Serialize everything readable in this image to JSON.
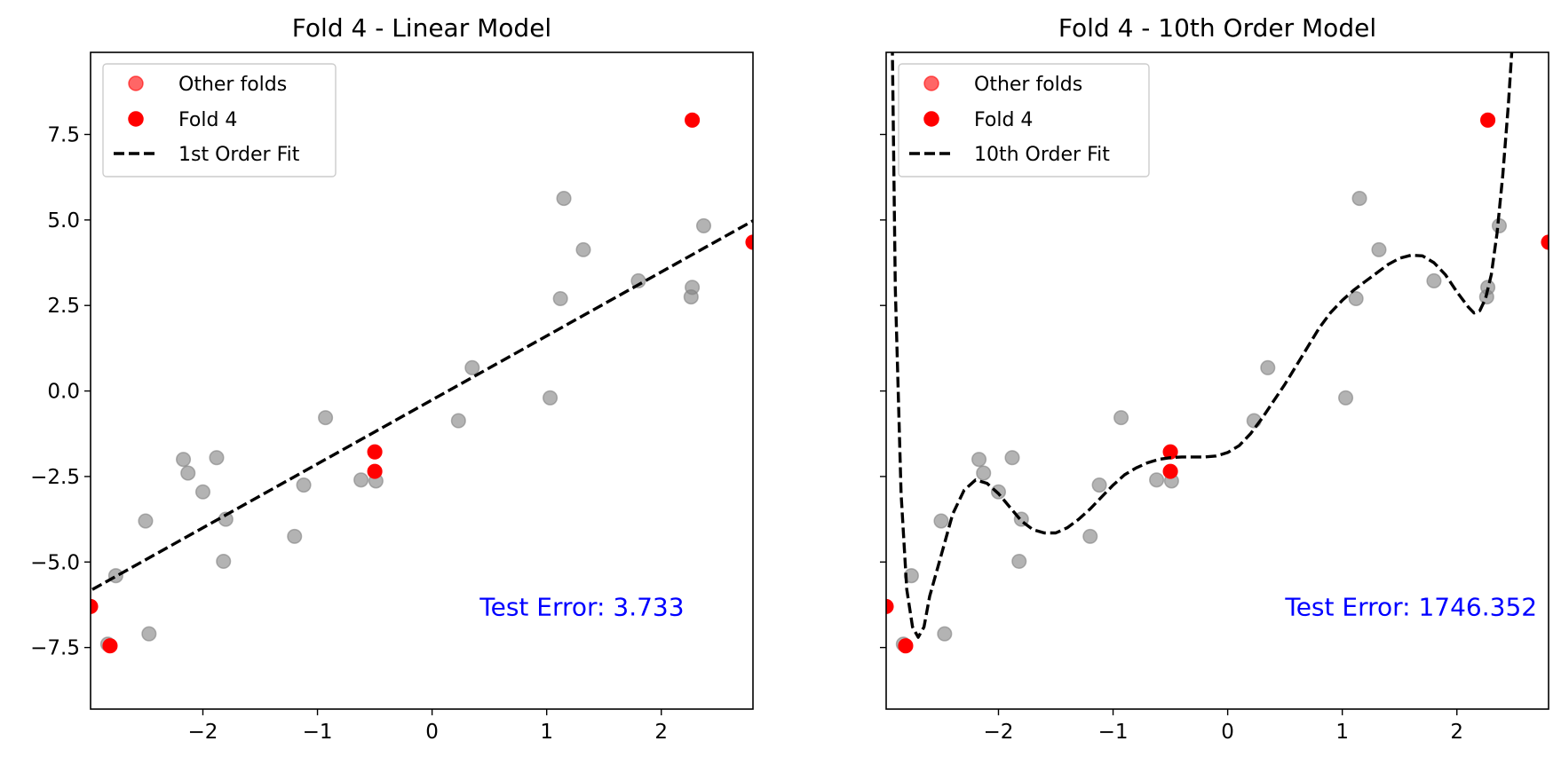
{
  "chart_data": [
    {
      "type": "scatter",
      "title": "Fold 4 - Linear Model",
      "xlim": [
        -2.98,
        2.8
      ],
      "ylim": [
        -9.3,
        9.9
      ],
      "xticks": [
        -2,
        -1,
        0,
        1,
        2
      ],
      "xtick_labels": [
        "−2",
        "−1",
        "0",
        "1",
        "2"
      ],
      "yticks": [
        7.5,
        5.0,
        2.5,
        0.0,
        -2.5,
        -5.0,
        -7.5
      ],
      "ytick_labels": [
        "7.5",
        "5.0",
        "2.5",
        "0.0",
        "−2.5",
        "−5.0",
        "−7.5"
      ],
      "show_yticklabels": true,
      "legend": {
        "placement": "upper-left",
        "entries": [
          {
            "label": "Other folds",
            "kind": "marker",
            "color": "#ff0000",
            "alpha": 0.6
          },
          {
            "label": "Fold 4",
            "kind": "marker",
            "color": "#ff0000",
            "alpha": 1.0
          },
          {
            "label": "1st Order Fit",
            "kind": "dashed-line",
            "color": "#000000"
          }
        ]
      },
      "series": [
        {
          "kind": "scatter",
          "color": "#808080",
          "alpha": 0.6,
          "points": [
            [
              -2.83,
              -7.4
            ],
            [
              -2.76,
              -5.4
            ],
            [
              -2.5,
              -3.8
            ],
            [
              -2.47,
              -7.1
            ],
            [
              -2.17,
              -2.0
            ],
            [
              -2.13,
              -2.4
            ],
            [
              -2.0,
              -2.95
            ],
            [
              -1.88,
              -1.95
            ],
            [
              -1.8,
              -3.75
            ],
            [
              -1.82,
              -4.98
            ],
            [
              -1.2,
              -4.25
            ],
            [
              -1.12,
              -2.75
            ],
            [
              -0.93,
              -0.78
            ],
            [
              -0.62,
              -2.6
            ],
            [
              -0.49,
              -2.63
            ],
            [
              0.23,
              -0.87
            ],
            [
              0.35,
              0.68
            ],
            [
              1.03,
              -0.2
            ],
            [
              1.12,
              2.7
            ],
            [
              1.15,
              5.63
            ],
            [
              1.32,
              4.13
            ],
            [
              1.8,
              3.22
            ],
            [
              2.26,
              2.75
            ],
            [
              2.27,
              3.03
            ],
            [
              2.37,
              4.83
            ]
          ]
        },
        {
          "kind": "scatter",
          "name": "Fold 4",
          "color": "#ff0000",
          "alpha": 1.0,
          "points": [
            [
              -2.98,
              -6.3
            ],
            [
              -2.81,
              -7.45
            ],
            [
              -0.5,
              -1.78
            ],
            [
              -0.5,
              -2.35
            ],
            [
              2.27,
              7.92
            ],
            [
              2.8,
              4.35
            ]
          ]
        },
        {
          "kind": "polyfit",
          "name": "1st Order Fit",
          "color": "#000000",
          "coefficients": [
            -0.26,
            1.87
          ]
        }
      ],
      "annotation": {
        "text": "Test Error: 3.733",
        "color": "#0000ff",
        "x": 2.2,
        "y": -6.3
      }
    },
    {
      "type": "scatter",
      "title": "Fold 4 - 10th Order Model",
      "xlim": [
        -2.98,
        2.8
      ],
      "ylim": [
        -9.3,
        9.9
      ],
      "xticks": [
        -2,
        -1,
        0,
        1,
        2
      ],
      "xtick_labels": [
        "−2",
        "−1",
        "0",
        "1",
        "2"
      ],
      "yticks": [
        7.5,
        5.0,
        2.5,
        0.0,
        -2.5,
        -5.0,
        -7.5
      ],
      "ytick_labels": [
        "",
        "",
        "",
        "",
        "",
        "",
        ""
      ],
      "show_yticklabels": false,
      "legend": {
        "placement": "upper-left",
        "entries": [
          {
            "label": "Other folds",
            "kind": "marker",
            "color": "#ff0000",
            "alpha": 0.6
          },
          {
            "label": "Fold 4",
            "kind": "marker",
            "color": "#ff0000",
            "alpha": 1.0
          },
          {
            "label": "10th Order Fit",
            "kind": "dashed-line",
            "color": "#000000"
          }
        ]
      },
      "series": [
        {
          "kind": "scatter",
          "color": "#808080",
          "alpha": 0.6,
          "points": [
            [
              -2.83,
              -7.4
            ],
            [
              -2.76,
              -5.4
            ],
            [
              -2.5,
              -3.8
            ],
            [
              -2.47,
              -7.1
            ],
            [
              -2.17,
              -2.0
            ],
            [
              -2.13,
              -2.4
            ],
            [
              -2.0,
              -2.95
            ],
            [
              -1.88,
              -1.95
            ],
            [
              -1.8,
              -3.75
            ],
            [
              -1.82,
              -4.98
            ],
            [
              -1.2,
              -4.25
            ],
            [
              -1.12,
              -2.75
            ],
            [
              -0.93,
              -0.78
            ],
            [
              -0.62,
              -2.6
            ],
            [
              -0.49,
              -2.63
            ],
            [
              0.23,
              -0.87
            ],
            [
              0.35,
              0.68
            ],
            [
              1.03,
              -0.2
            ],
            [
              1.12,
              2.7
            ],
            [
              1.15,
              5.63
            ],
            [
              1.32,
              4.13
            ],
            [
              1.8,
              3.22
            ],
            [
              2.26,
              2.75
            ],
            [
              2.27,
              3.03
            ],
            [
              2.37,
              4.83
            ]
          ]
        },
        {
          "kind": "scatter",
          "name": "Fold 4",
          "color": "#ff0000",
          "alpha": 1.0,
          "points": [
            [
              -2.98,
              -6.3
            ],
            [
              -2.81,
              -7.45
            ],
            [
              -0.5,
              -1.78
            ],
            [
              -0.5,
              -2.35
            ],
            [
              2.27,
              7.92
            ],
            [
              2.8,
              4.35
            ]
          ]
        },
        {
          "kind": "curve",
          "name": "10th Order Fit",
          "color": "#000000",
          "points": [
            [
              -2.93,
              11.0
            ],
            [
              -2.9,
              3.0
            ],
            [
              -2.85,
              -3.0
            ],
            [
              -2.8,
              -5.8
            ],
            [
              -2.75,
              -6.9
            ],
            [
              -2.7,
              -7.2
            ],
            [
              -2.65,
              -6.9
            ],
            [
              -2.6,
              -6.0
            ],
            [
              -2.5,
              -4.8
            ],
            [
              -2.4,
              -3.6
            ],
            [
              -2.3,
              -2.9
            ],
            [
              -2.2,
              -2.6
            ],
            [
              -2.1,
              -2.7
            ],
            [
              -2.0,
              -3.0
            ],
            [
              -1.9,
              -3.4
            ],
            [
              -1.8,
              -3.8
            ],
            [
              -1.7,
              -4.05
            ],
            [
              -1.6,
              -4.15
            ],
            [
              -1.5,
              -4.15
            ],
            [
              -1.4,
              -4.0
            ],
            [
              -1.3,
              -3.75
            ],
            [
              -1.2,
              -3.45
            ],
            [
              -1.1,
              -3.1
            ],
            [
              -1.0,
              -2.75
            ],
            [
              -0.9,
              -2.45
            ],
            [
              -0.8,
              -2.25
            ],
            [
              -0.7,
              -2.1
            ],
            [
              -0.6,
              -2.0
            ],
            [
              -0.5,
              -1.95
            ],
            [
              -0.4,
              -1.93
            ],
            [
              -0.3,
              -1.93
            ],
            [
              -0.2,
              -1.93
            ],
            [
              -0.1,
              -1.9
            ],
            [
              0.0,
              -1.8
            ],
            [
              0.1,
              -1.6
            ],
            [
              0.2,
              -1.25
            ],
            [
              0.3,
              -0.8
            ],
            [
              0.4,
              -0.3
            ],
            [
              0.5,
              0.2
            ],
            [
              0.6,
              0.75
            ],
            [
              0.7,
              1.3
            ],
            [
              0.8,
              1.85
            ],
            [
              0.9,
              2.3
            ],
            [
              1.0,
              2.65
            ],
            [
              1.1,
              2.95
            ],
            [
              1.2,
              3.2
            ],
            [
              1.3,
              3.45
            ],
            [
              1.4,
              3.7
            ],
            [
              1.5,
              3.88
            ],
            [
              1.6,
              3.97
            ],
            [
              1.7,
              3.95
            ],
            [
              1.8,
              3.75
            ],
            [
              1.9,
              3.4
            ],
            [
              2.0,
              2.9
            ],
            [
              2.1,
              2.45
            ],
            [
              2.15,
              2.28
            ],
            [
              2.2,
              2.35
            ],
            [
              2.25,
              2.7
            ],
            [
              2.3,
              3.4
            ],
            [
              2.35,
              4.6
            ],
            [
              2.4,
              6.3
            ],
            [
              2.45,
              8.4
            ],
            [
              2.5,
              11.0
            ]
          ]
        }
      ],
      "annotation": {
        "text": "Test Error: 1746.352",
        "color": "#0000ff",
        "x": 2.7,
        "y": -6.3
      }
    }
  ]
}
